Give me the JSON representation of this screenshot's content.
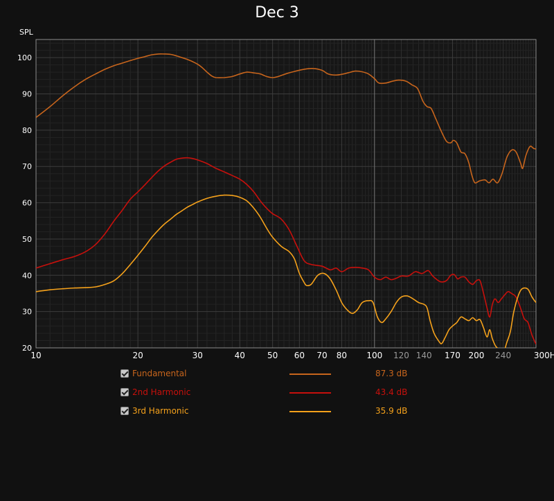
{
  "chart_data": {
    "type": "line",
    "title": "Dec 3",
    "ylabel": "SPL",
    "xlabel": "",
    "x_unit": "Hz",
    "x_scale": "log",
    "xlim": [
      10,
      300
    ],
    "ylim": [
      20,
      105
    ],
    "grid": true,
    "y_ticks": [
      20,
      30,
      40,
      50,
      60,
      70,
      80,
      90,
      100
    ],
    "x_ticks": [
      {
        "value": 10,
        "label": "10",
        "major": true
      },
      {
        "value": 20,
        "label": "20",
        "major": true
      },
      {
        "value": 30,
        "label": "30",
        "major": true
      },
      {
        "value": 40,
        "label": "40",
        "major": true
      },
      {
        "value": 50,
        "label": "50",
        "major": true
      },
      {
        "value": 60,
        "label": "60",
        "major": true
      },
      {
        "value": 70,
        "label": "70",
        "major": true
      },
      {
        "value": 80,
        "label": "80",
        "major": true
      },
      {
        "value": 100,
        "label": "100",
        "major": true
      },
      {
        "value": 120,
        "label": "120",
        "major": false
      },
      {
        "value": 140,
        "label": "140",
        "major": false
      },
      {
        "value": 170,
        "label": "170",
        "major": true
      },
      {
        "value": 200,
        "label": "200",
        "major": true
      },
      {
        "value": 240,
        "label": "240",
        "major": false
      },
      {
        "value": 300,
        "label": "300Hz",
        "major": true
      }
    ],
    "series": [
      {
        "name": "Fundamental",
        "color": "#c8651c",
        "value_label": "87.3 dB",
        "points": [
          [
            10,
            83.5
          ],
          [
            11,
            86.5
          ],
          [
            12,
            89.5
          ],
          [
            13,
            92
          ],
          [
            14,
            94
          ],
          [
            15,
            95.5
          ],
          [
            16,
            96.8
          ],
          [
            17,
            97.8
          ],
          [
            18,
            98.5
          ],
          [
            19,
            99.2
          ],
          [
            20,
            99.8
          ],
          [
            21,
            100.3
          ],
          [
            22,
            100.8
          ],
          [
            23,
            101
          ],
          [
            24,
            101
          ],
          [
            25,
            100.9
          ],
          [
            26,
            100.5
          ],
          [
            27,
            100
          ],
          [
            28,
            99.5
          ],
          [
            29,
            98.9
          ],
          [
            30,
            98.2
          ],
          [
            31,
            97.2
          ],
          [
            32,
            96
          ],
          [
            33,
            95
          ],
          [
            34,
            94.5
          ],
          [
            36,
            94.5
          ],
          [
            38,
            94.8
          ],
          [
            40,
            95.5
          ],
          [
            42,
            96
          ],
          [
            44,
            95.8
          ],
          [
            46,
            95.5
          ],
          [
            48,
            94.8
          ],
          [
            50,
            94.5
          ],
          [
            52,
            94.8
          ],
          [
            55,
            95.6
          ],
          [
            58,
            96.2
          ],
          [
            62,
            96.8
          ],
          [
            66,
            97
          ],
          [
            70,
            96.5
          ],
          [
            73,
            95.5
          ],
          [
            77,
            95.2
          ],
          [
            81,
            95.5
          ],
          [
            85,
            96
          ],
          [
            88,
            96.3
          ],
          [
            92,
            96.1
          ],
          [
            96,
            95.5
          ],
          [
            100,
            94.2
          ],
          [
            103,
            93
          ],
          [
            108,
            93
          ],
          [
            113,
            93.5
          ],
          [
            118,
            93.8
          ],
          [
            124,
            93.5
          ],
          [
            129,
            92.5
          ],
          [
            134,
            91.5
          ],
          [
            139,
            88
          ],
          [
            143,
            86.5
          ],
          [
            147,
            86
          ],
          [
            152,
            83
          ],
          [
            157,
            80
          ],
          [
            163,
            77
          ],
          [
            168,
            76.5
          ],
          [
            171,
            77.2
          ],
          [
            175,
            76.5
          ],
          [
            180,
            74
          ],
          [
            185,
            73.5
          ],
          [
            190,
            71
          ],
          [
            194,
            67.5
          ],
          [
            198,
            65.5
          ],
          [
            204,
            66
          ],
          [
            212,
            66.3
          ],
          [
            218,
            65.5
          ],
          [
            224,
            66.5
          ],
          [
            231,
            65.5
          ],
          [
            238,
            68
          ],
          [
            246,
            72.5
          ],
          [
            254,
            74.5
          ],
          [
            262,
            74
          ],
          [
            270,
            71
          ],
          [
            274,
            69.5
          ],
          [
            280,
            73
          ],
          [
            288,
            75.5
          ],
          [
            295,
            75
          ],
          [
            300,
            74.8
          ]
        ]
      },
      {
        "name": "2nd Harmonic",
        "color": "#c8100c",
        "value_label": "43.4 dB",
        "points": [
          [
            10,
            42
          ],
          [
            11,
            43.2
          ],
          [
            12,
            44.3
          ],
          [
            13,
            45.2
          ],
          [
            14,
            46.5
          ],
          [
            15,
            48.5
          ],
          [
            16,
            51.5
          ],
          [
            17,
            55
          ],
          [
            18,
            58
          ],
          [
            19,
            61
          ],
          [
            20,
            63
          ],
          [
            21,
            65
          ],
          [
            22,
            67
          ],
          [
            23,
            68.8
          ],
          [
            24,
            70.2
          ],
          [
            25,
            71.2
          ],
          [
            26,
            72
          ],
          [
            27,
            72.3
          ],
          [
            28,
            72.4
          ],
          [
            29,
            72.2
          ],
          [
            30,
            71.8
          ],
          [
            32,
            70.8
          ],
          [
            34,
            69.5
          ],
          [
            36,
            68.5
          ],
          [
            38,
            67.5
          ],
          [
            40,
            66.5
          ],
          [
            42,
            65
          ],
          [
            44,
            63
          ],
          [
            46,
            60.5
          ],
          [
            48,
            58.5
          ],
          [
            50,
            57
          ],
          [
            53,
            55.5
          ],
          [
            56,
            52.5
          ],
          [
            59,
            48
          ],
          [
            62,
            44
          ],
          [
            65,
            43
          ],
          [
            70,
            42.5
          ],
          [
            74,
            41.5
          ],
          [
            77,
            42
          ],
          [
            80,
            41
          ],
          [
            84,
            42
          ],
          [
            88,
            42.2
          ],
          [
            92,
            42
          ],
          [
            96,
            41.5
          ],
          [
            100,
            39.5
          ],
          [
            104,
            38.8
          ],
          [
            108,
            39.5
          ],
          [
            112,
            38.8
          ],
          [
            116,
            39.2
          ],
          [
            120,
            39.8
          ],
          [
            126,
            39.8
          ],
          [
            132,
            41
          ],
          [
            138,
            40.5
          ],
          [
            144,
            41.3
          ],
          [
            148,
            40
          ],
          [
            152,
            39
          ],
          [
            157,
            38.2
          ],
          [
            163,
            38.5
          ],
          [
            168,
            40
          ],
          [
            172,
            40.2
          ],
          [
            176,
            39
          ],
          [
            180,
            39.5
          ],
          [
            185,
            39.5
          ],
          [
            190,
            38.2
          ],
          [
            195,
            37.5
          ],
          [
            200,
            38.5
          ],
          [
            205,
            38.5
          ],
          [
            210,
            35
          ],
          [
            215,
            31
          ],
          [
            219,
            28.5
          ],
          [
            223,
            32
          ],
          [
            227,
            33.5
          ],
          [
            232,
            32.5
          ],
          [
            237,
            33.5
          ],
          [
            242,
            34.5
          ],
          [
            248,
            35.5
          ],
          [
            254,
            35
          ],
          [
            262,
            34
          ],
          [
            270,
            31
          ],
          [
            277,
            28
          ],
          [
            284,
            27
          ],
          [
            292,
            23.5
          ],
          [
            300,
            21
          ]
        ]
      },
      {
        "name": "3rd Harmonic",
        "color": "#f6a21b",
        "value_label": "35.9 dB",
        "points": [
          [
            10,
            35.5
          ],
          [
            11,
            36
          ],
          [
            12,
            36.3
          ],
          [
            13,
            36.5
          ],
          [
            14,
            36.6
          ],
          [
            15,
            36.8
          ],
          [
            16,
            37.5
          ],
          [
            17,
            38.5
          ],
          [
            18,
            40.5
          ],
          [
            19,
            43
          ],
          [
            20,
            45.5
          ],
          [
            21,
            48
          ],
          [
            22,
            50.5
          ],
          [
            23,
            52.5
          ],
          [
            24,
            54.2
          ],
          [
            25,
            55.5
          ],
          [
            26,
            56.8
          ],
          [
            27,
            57.8
          ],
          [
            28,
            58.8
          ],
          [
            29,
            59.5
          ],
          [
            30,
            60.2
          ],
          [
            32,
            61.2
          ],
          [
            34,
            61.8
          ],
          [
            36,
            62.1
          ],
          [
            38,
            62
          ],
          [
            40,
            61.5
          ],
          [
            42,
            60.5
          ],
          [
            44,
            58.5
          ],
          [
            46,
            56
          ],
          [
            48,
            53
          ],
          [
            50,
            50.5
          ],
          [
            53,
            48
          ],
          [
            56,
            46.5
          ],
          [
            58,
            44.5
          ],
          [
            60,
            40.5
          ],
          [
            62,
            38
          ],
          [
            63,
            37.2
          ],
          [
            65,
            37.5
          ],
          [
            68,
            40
          ],
          [
            71,
            40.5
          ],
          [
            74,
            39
          ],
          [
            77,
            36
          ],
          [
            80,
            32.5
          ],
          [
            83,
            30.5
          ],
          [
            86,
            29.5
          ],
          [
            89,
            30.5
          ],
          [
            92,
            32.5
          ],
          [
            96,
            33
          ],
          [
            99,
            32.5
          ],
          [
            102,
            28.5
          ],
          [
            105,
            27
          ],
          [
            108,
            28
          ],
          [
            112,
            30
          ],
          [
            116,
            32.5
          ],
          [
            120,
            34
          ],
          [
            125,
            34.3
          ],
          [
            130,
            33.5
          ],
          [
            135,
            32.5
          ],
          [
            140,
            32
          ],
          [
            143,
            31
          ],
          [
            146,
            27.5
          ],
          [
            150,
            24
          ],
          [
            155,
            21.8
          ],
          [
            158,
            21.2
          ],
          [
            162,
            23
          ],
          [
            166,
            25
          ],
          [
            170,
            26
          ],
          [
            175,
            27
          ],
          [
            180,
            28.5
          ],
          [
            185,
            28
          ],
          [
            190,
            27.5
          ],
          [
            195,
            28.3
          ],
          [
            200,
            27.5
          ],
          [
            205,
            27.8
          ],
          [
            210,
            25.5
          ],
          [
            215,
            23
          ],
          [
            219,
            25
          ],
          [
            223,
            22.5
          ],
          [
            228,
            20.5
          ],
          [
            234,
            19.5
          ],
          [
            240,
            18.5
          ],
          [
            246,
            21.5
          ],
          [
            252,
            24.5
          ],
          [
            258,
            30
          ],
          [
            265,
            34
          ],
          [
            271,
            36
          ],
          [
            278,
            36.5
          ],
          [
            285,
            36
          ],
          [
            292,
            34
          ],
          [
            300,
            32.5
          ]
        ]
      }
    ]
  }
}
